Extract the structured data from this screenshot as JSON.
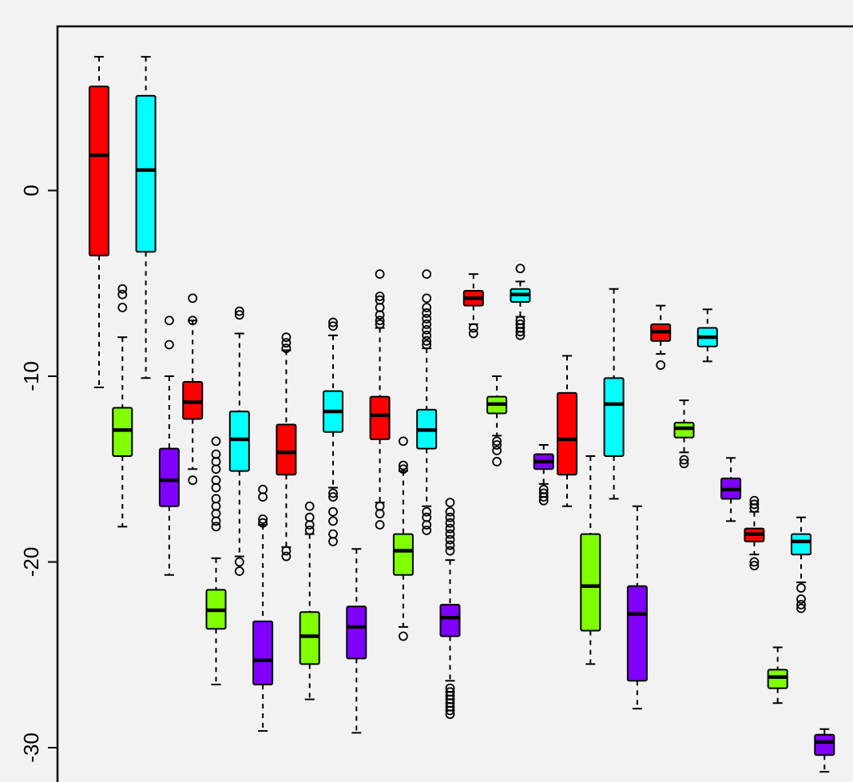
{
  "chart_data": {
    "type": "box",
    "title": "",
    "xlabel": "",
    "ylabel": "",
    "ylim": [
      -31.5,
      8.9
    ],
    "y_ticks": [
      0,
      -10,
      -20,
      -30
    ],
    "y_tick_labels": [
      "0",
      "-10",
      "-20",
      "-30"
    ],
    "grid": false,
    "legend": "none",
    "colors": {
      "red": "#ff0000",
      "green": "#80ff00",
      "cyan": "#00ffff",
      "purple": "#8000ff"
    },
    "boxes": [
      {
        "color": "red",
        "whisker_high": 7.2,
        "q3": 5.6,
        "median": 1.9,
        "q1": -3.5,
        "whisker_low": -10.6,
        "outliers": []
      },
      {
        "color": "green",
        "whisker_high": -7.9,
        "q3": -11.7,
        "median": -12.9,
        "q1": -14.3,
        "whisker_low": -18.1,
        "outliers": [
          -5.3,
          -5.6,
          -6.3
        ]
      },
      {
        "color": "cyan",
        "whisker_high": 7.2,
        "q3": 5.1,
        "median": 1.1,
        "q1": -3.3,
        "whisker_low": -10.1,
        "outliers": []
      },
      {
        "color": "purple",
        "whisker_high": -10.0,
        "q3": -13.9,
        "median": -15.6,
        "q1": -17.0,
        "whisker_low": -20.7,
        "outliers": [
          -7.0,
          -8.3
        ]
      },
      {
        "color": "red",
        "whisker_high": -7.0,
        "q3": -10.3,
        "median": -11.4,
        "q1": -12.3,
        "whisker_low": -15.0,
        "outliers": [
          -5.8,
          -7.0,
          -15.6
        ]
      },
      {
        "color": "green",
        "whisker_high": -19.8,
        "q3": -21.5,
        "median": -22.6,
        "q1": -23.6,
        "whisker_low": -26.6,
        "outliers": [
          -13.5,
          -14.2,
          -14.6,
          -15.0,
          -15.6,
          -16.0,
          -16.6,
          -17.0,
          -17.4,
          -17.8,
          -18.1
        ]
      },
      {
        "color": "cyan",
        "whisker_high": -7.7,
        "q3": -11.9,
        "median": -13.4,
        "q1": -15.1,
        "whisker_low": -19.7,
        "outliers": [
          -6.5,
          -6.7,
          -20.0,
          -20.5
        ]
      },
      {
        "color": "purple",
        "whisker_high": -18.0,
        "q3": -23.2,
        "median": -25.3,
        "q1": -26.6,
        "whisker_low": -29.1,
        "outliers": [
          -16.1,
          -16.5,
          -17.7,
          -17.9
        ]
      },
      {
        "color": "red",
        "whisker_high": -8.6,
        "q3": -12.6,
        "median": -14.1,
        "q1": -15.3,
        "whisker_low": -19.2,
        "outliers": [
          -7.9,
          -8.2,
          -8.5,
          -19.4,
          -19.7
        ]
      },
      {
        "color": "green",
        "whisker_high": -18.5,
        "q3": -22.7,
        "median": -24.0,
        "q1": -25.5,
        "whisker_low": -27.4,
        "outliers": [
          -17.0,
          -17.6,
          -18.0,
          -18.3
        ]
      },
      {
        "color": "cyan",
        "whisker_high": -7.8,
        "q3": -10.8,
        "median": -11.9,
        "q1": -13.0,
        "whisker_low": -16.0,
        "outliers": [
          -7.1,
          -7.3,
          -16.3,
          -16.5,
          -17.3,
          -17.8,
          -18.5,
          -18.9
        ]
      },
      {
        "color": "purple",
        "whisker_high": -19.3,
        "q3": -22.4,
        "median": -23.5,
        "q1": -25.2,
        "whisker_low": -29.2,
        "outliers": []
      },
      {
        "color": "red",
        "whisker_high": -7.4,
        "q3": -11.1,
        "median": -12.1,
        "q1": -13.4,
        "whisker_low": -16.8,
        "outliers": [
          -4.5,
          -5.7,
          -5.9,
          -6.3,
          -6.7,
          -7.0,
          -7.2,
          -17.0,
          -17.4,
          -18.0
        ]
      },
      {
        "color": "green",
        "whisker_high": -15.1,
        "q3": -18.5,
        "median": -19.4,
        "q1": -20.7,
        "whisker_low": -23.5,
        "outliers": [
          -13.5,
          -14.8,
          -15.0,
          -24.0
        ]
      },
      {
        "color": "cyan",
        "whisker_high": -8.5,
        "q3": -11.8,
        "median": -12.9,
        "q1": -13.9,
        "whisker_low": -17.0,
        "outliers": [
          -4.5,
          -5.8,
          -6.3,
          -6.6,
          -6.9,
          -7.2,
          -7.5,
          -7.8,
          -8.1,
          -8.3,
          -17.3,
          -17.6,
          -18.0,
          -18.3
        ]
      },
      {
        "color": "purple",
        "whisker_high": -19.9,
        "q3": -22.3,
        "median": -23.0,
        "q1": -24.0,
        "whisker_low": -26.4,
        "outliers": [
          -16.8,
          -17.3,
          -17.6,
          -17.9,
          -18.2,
          -18.5,
          -18.8,
          -19.1,
          -19.4,
          -26.8,
          -27.0,
          -27.2,
          -27.4,
          -27.6,
          -27.8,
          -28.0,
          -28.2
        ]
      },
      {
        "color": "red",
        "whisker_high": -4.5,
        "q3": -5.4,
        "median": -5.8,
        "q1": -6.2,
        "whisker_low": -7.2,
        "outliers": [
          -7.4,
          -7.7
        ]
      },
      {
        "color": "green",
        "whisker_high": -10.0,
        "q3": -11.1,
        "median": -11.5,
        "q1": -12.0,
        "whisker_low": -13.2,
        "outliers": [
          -13.5,
          -13.7,
          -14.0,
          -14.6
        ]
      },
      {
        "color": "cyan",
        "whisker_high": -4.9,
        "q3": -5.3,
        "median": -5.6,
        "q1": -6.0,
        "whisker_low": -6.8,
        "outliers": [
          -4.2,
          -7.0,
          -7.2,
          -7.4,
          -7.6,
          -7.8
        ]
      },
      {
        "color": "purple",
        "whisker_high": -13.7,
        "q3": -14.2,
        "median": -14.6,
        "q1": -15.0,
        "whisker_low": -15.8,
        "outliers": [
          -16.1,
          -16.3,
          -16.5,
          -16.7
        ]
      },
      {
        "color": "red",
        "whisker_high": -8.9,
        "q3": -10.9,
        "median": -13.4,
        "q1": -15.3,
        "whisker_low": -17.0,
        "outliers": []
      },
      {
        "color": "green",
        "whisker_high": -14.3,
        "q3": -18.5,
        "median": -21.3,
        "q1": -23.7,
        "whisker_low": -25.5,
        "outliers": []
      },
      {
        "color": "cyan",
        "whisker_high": -5.3,
        "q3": -10.1,
        "median": -11.5,
        "q1": -14.3,
        "whisker_low": -16.6,
        "outliers": []
      },
      {
        "color": "purple",
        "whisker_high": -17.0,
        "q3": -21.3,
        "median": -22.8,
        "q1": -26.4,
        "whisker_low": -27.9,
        "outliers": []
      },
      {
        "color": "red",
        "whisker_high": -6.2,
        "q3": -7.2,
        "median": -7.6,
        "q1": -8.1,
        "whisker_low": -8.8,
        "outliers": [
          -9.4
        ]
      },
      {
        "color": "green",
        "whisker_high": -11.3,
        "q3": -12.5,
        "median": -12.8,
        "q1": -13.3,
        "whisker_low": -14.1,
        "outliers": [
          -14.5,
          -14.7
        ]
      },
      {
        "color": "cyan",
        "whisker_high": -6.4,
        "q3": -7.4,
        "median": -7.9,
        "q1": -8.4,
        "whisker_low": -9.2,
        "outliers": []
      },
      {
        "color": "purple",
        "whisker_high": -14.4,
        "q3": -15.5,
        "median": -16.1,
        "q1": -16.6,
        "whisker_low": -17.8,
        "outliers": []
      },
      {
        "color": "red",
        "whisker_high": -17.3,
        "q3": -18.2,
        "median": -18.5,
        "q1": -18.9,
        "whisker_low": -19.6,
        "outliers": [
          -16.7,
          -16.9,
          -17.1,
          -20.0,
          -20.2
        ]
      },
      {
        "color": "green",
        "whisker_high": -24.6,
        "q3": -25.8,
        "median": -26.2,
        "q1": -26.8,
        "whisker_low": -27.6,
        "outliers": []
      },
      {
        "color": "cyan",
        "whisker_high": -17.6,
        "q3": -18.5,
        "median": -18.9,
        "q1": -19.6,
        "whisker_low": -21.1,
        "outliers": [
          -21.4,
          -22.0,
          -22.3,
          -22.5
        ]
      },
      {
        "color": "purple",
        "whisker_high": -29.0,
        "q3": -29.3,
        "median": -29.7,
        "q1": -30.4,
        "whisker_low": -31.3,
        "outliers": []
      }
    ]
  }
}
